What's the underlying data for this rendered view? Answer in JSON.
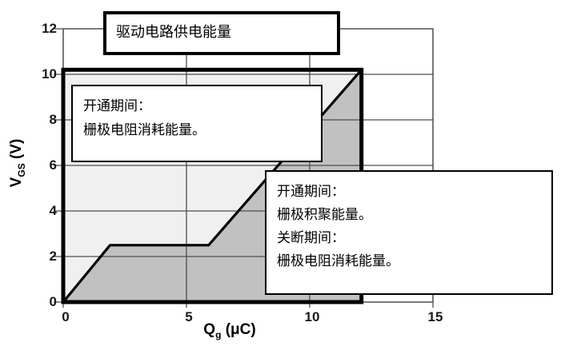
{
  "figure": {
    "description": "Gate charge curve (VGS vs Qg) with gate-drive energy regions",
    "background": "#ffffff"
  },
  "colors": {
    "fill_above_curve": "#f0f0f0",
    "fill_below_curve": "#c1c1c1",
    "grid": "#4d4d4d",
    "curve": "#000000",
    "envelope": "#000000",
    "tick_text": "#1a1a1a",
    "box_border": "#000000",
    "box_bg": "#ffffff"
  },
  "chart_data": {
    "type": "area",
    "title": "",
    "xlabel": "Qg (μC)",
    "ylabel": "VGS (V)",
    "xlabel_parts": {
      "main": "Q",
      "sub": "g",
      "unit": " (μC)"
    },
    "ylabel_parts": {
      "main": "V",
      "sub": "GS",
      "unit": " (V)"
    },
    "x_axis": {
      "min": 0,
      "max": 15,
      "ticks": [
        0,
        5,
        10,
        15
      ],
      "grid": true
    },
    "y_axis": {
      "min": 0,
      "max": 12,
      "ticks": [
        0,
        2,
        4,
        6,
        8,
        10,
        12
      ],
      "grid": true
    },
    "series": [
      {
        "name": "gate-charge-curve",
        "points": [
          [
            0,
            0
          ],
          [
            1.9,
            2.5
          ],
          [
            5.9,
            2.5
          ],
          [
            12.1,
            10.2
          ]
        ]
      }
    ],
    "supply_envelope": {
      "q_range": [
        0,
        12.1
      ],
      "v_gs": 10.2
    },
    "regions": [
      {
        "id": "above-curve",
        "color": "#f0f0f0",
        "label_ref": "turn_on_loss"
      },
      {
        "id": "below-curve",
        "color": "#c1c1c1",
        "label_ref": "gate_energy"
      }
    ]
  },
  "annotations": {
    "supply": {
      "lines": [
        "驱动电路供电能量"
      ]
    },
    "turn_on_loss": {
      "lines": [
        "开通期间：",
        "栅极电阻消耗能量。"
      ]
    },
    "gate_energy": {
      "lines": [
        "开通期间：",
        "栅极积聚能量。",
        "关断期间：",
        "栅极电阻消耗能量。"
      ]
    }
  }
}
